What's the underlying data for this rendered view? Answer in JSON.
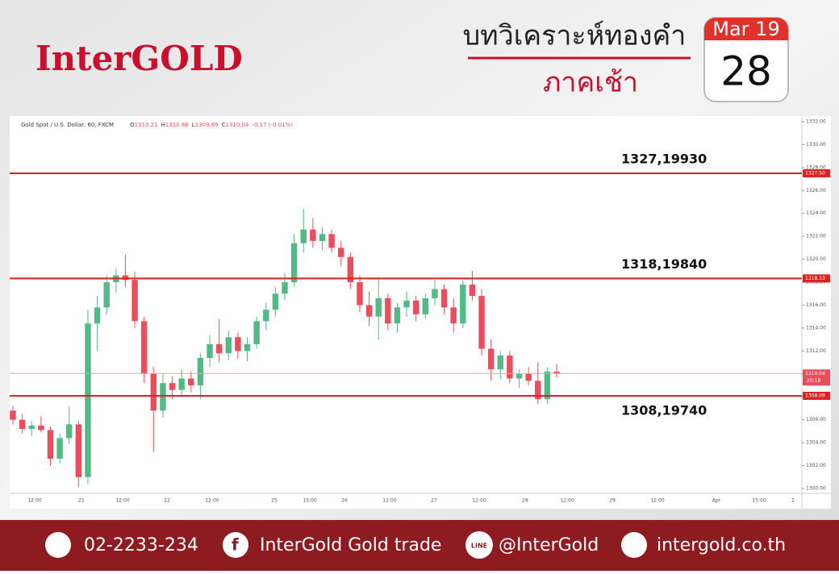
{
  "header": {
    "brand": "InterGOLD",
    "title": "บทวิเคราะห์ทองคำ",
    "subtitle": "ภาคเช้า",
    "month": "Mar 19",
    "day": "28"
  },
  "chart_data": {
    "type": "candlestick",
    "symbol": "Gold Spot / U.S. Dollar, 60, FXCM",
    "ohlc_labels": [
      "O",
      "H",
      "L",
      "C"
    ],
    "change": "-0.17 (-0.01%)",
    "colors": {
      "up": "#53b987",
      "down": "#eb4d5c"
    },
    "candles": [
      [
        1306.8,
        1307.2,
        1305.6,
        1306.0
      ],
      [
        1306.0,
        1306.5,
        1304.8,
        1305.2
      ],
      [
        1305.2,
        1305.9,
        1304.6,
        1305.5
      ],
      [
        1305.5,
        1306.3,
        1304.9,
        1305.1
      ],
      [
        1305.1,
        1305.4,
        1302.0,
        1302.6
      ],
      [
        1302.6,
        1304.8,
        1302.2,
        1304.4
      ],
      [
        1304.4,
        1307.2,
        1303.9,
        1305.6
      ],
      [
        1305.6,
        1305.9,
        1300.1,
        1301.0
      ],
      [
        1301.0,
        1315.6,
        1300.4,
        1314.4
      ],
      [
        1314.4,
        1316.8,
        1312.0,
        1315.8
      ],
      [
        1315.8,
        1318.6,
        1315.2,
        1318.0
      ],
      [
        1318.0,
        1319.2,
        1317.1,
        1318.6
      ],
      [
        1318.6,
        1320.4,
        1317.6,
        1318.2
      ],
      [
        1318.2,
        1318.9,
        1314.0,
        1314.6
      ],
      [
        1314.6,
        1315.0,
        1309.2,
        1310.0
      ],
      [
        1310.0,
        1310.6,
        1303.2,
        1306.8
      ],
      [
        1306.8,
        1310.1,
        1306.2,
        1309.2
      ],
      [
        1309.2,
        1309.8,
        1307.8,
        1308.6
      ],
      [
        1308.6,
        1310.4,
        1308.0,
        1309.6
      ],
      [
        1309.6,
        1310.2,
        1308.4,
        1309.0
      ],
      [
        1309.0,
        1311.8,
        1307.8,
        1311.4
      ],
      [
        1311.4,
        1313.4,
        1310.6,
        1312.6
      ],
      [
        1312.6,
        1314.8,
        1311.0,
        1311.8
      ],
      [
        1311.8,
        1313.8,
        1311.2,
        1313.2
      ],
      [
        1313.2,
        1313.6,
        1311.3,
        1312.0
      ],
      [
        1312.0,
        1313.2,
        1311.1,
        1312.6
      ],
      [
        1312.6,
        1315.0,
        1312.2,
        1314.6
      ],
      [
        1314.6,
        1316.2,
        1313.8,
        1315.6
      ],
      [
        1315.6,
        1317.6,
        1315.0,
        1317.0
      ],
      [
        1317.0,
        1318.8,
        1316.4,
        1318.0
      ],
      [
        1318.0,
        1322.2,
        1317.6,
        1321.4
      ],
      [
        1321.4,
        1324.4,
        1320.6,
        1322.6
      ],
      [
        1322.6,
        1323.6,
        1321.0,
        1321.6
      ],
      [
        1321.6,
        1322.8,
        1320.8,
        1322.2
      ],
      [
        1322.2,
        1322.6,
        1320.6,
        1321.0
      ],
      [
        1321.0,
        1321.6,
        1319.4,
        1320.2
      ],
      [
        1320.2,
        1320.6,
        1317.4,
        1318.0
      ],
      [
        1318.0,
        1318.6,
        1315.4,
        1316.0
      ],
      [
        1316.0,
        1317.2,
        1314.2,
        1315.0
      ],
      [
        1315.0,
        1318.4,
        1313.0,
        1316.6
      ],
      [
        1316.6,
        1317.0,
        1313.8,
        1314.4
      ],
      [
        1314.4,
        1316.2,
        1313.6,
        1315.8
      ],
      [
        1315.8,
        1317.2,
        1315.0,
        1316.4
      ],
      [
        1316.4,
        1316.8,
        1314.6,
        1315.2
      ],
      [
        1315.2,
        1317.0,
        1314.8,
        1316.6
      ],
      [
        1316.6,
        1318.2,
        1316.0,
        1317.4
      ],
      [
        1317.4,
        1317.8,
        1315.2,
        1315.8
      ],
      [
        1315.8,
        1316.6,
        1313.6,
        1314.4
      ],
      [
        1314.4,
        1318.2,
        1314.0,
        1317.8
      ],
      [
        1317.8,
        1319.0,
        1316.4,
        1316.8
      ],
      [
        1316.8,
        1317.4,
        1311.6,
        1312.2
      ],
      [
        1312.2,
        1313.0,
        1309.4,
        1310.4
      ],
      [
        1310.4,
        1312.0,
        1309.6,
        1311.6
      ],
      [
        1311.6,
        1312.0,
        1309.2,
        1309.6
      ],
      [
        1309.6,
        1310.4,
        1308.8,
        1310.0
      ],
      [
        1310.0,
        1310.6,
        1309.0,
        1309.4
      ],
      [
        1309.4,
        1311.0,
        1307.4,
        1307.8
      ],
      [
        1307.8,
        1310.6,
        1307.4,
        1310.21
      ],
      [
        1310.21,
        1310.88,
        1309.69,
        1310.04
      ]
    ],
    "xticks": [
      "12:00",
      "21",
      "12:00",
      "22",
      "12:00",
      "25",
      "15:00",
      "26",
      "12:00",
      "27",
      "12:00",
      "28",
      "12:00",
      "29",
      "12:00",
      "Apr",
      "15:00",
      "2"
    ],
    "ylim": [
      1299.58,
      1332.42
    ],
    "yticks": [
      {
        "value": 1300,
        "label": "1300.00"
      },
      {
        "value": 1302,
        "label": "1302.00"
      },
      {
        "value": 1304,
        "label": "1304.00"
      },
      {
        "value": 1306,
        "label": "1306.00"
      },
      {
        "value": 1308,
        "label": "1308.00"
      },
      {
        "value": 1310,
        "label": "1310.00"
      },
      {
        "value": 1312,
        "label": "1312.00"
      },
      {
        "value": 1314,
        "label": "1314.00"
      },
      {
        "value": 1316,
        "label": "1316.00"
      },
      {
        "value": 1318,
        "label": "1318.00"
      },
      {
        "value": 1320,
        "label": "1320.00"
      },
      {
        "value": 1322,
        "label": "1322.00"
      },
      {
        "value": 1324,
        "label": "1324.00"
      },
      {
        "value": 1326,
        "label": "1326.00"
      },
      {
        "value": 1328,
        "label": "1328.00"
      },
      {
        "value": 1330,
        "label": "1330.00"
      },
      {
        "value": 1332,
        "label": "1332.00"
      }
    ],
    "levels": [
      {
        "value": 1327.5,
        "label": "1327.50",
        "note": "1327,19930"
      },
      {
        "value": 1318.33,
        "label": "1318.33",
        "note": "1318,19840"
      },
      {
        "value": 1308.09,
        "label": "1308.09",
        "note": "1308,19740"
      }
    ],
    "current": {
      "value": 1310.04,
      "label": "1310.04",
      "timer": "20:18"
    }
  },
  "footer": {
    "phone": "02-2233-234",
    "facebook": "InterGold Gold trade",
    "line_icon": "LINE",
    "line": "@InterGold",
    "web": "intergold.co.th"
  }
}
